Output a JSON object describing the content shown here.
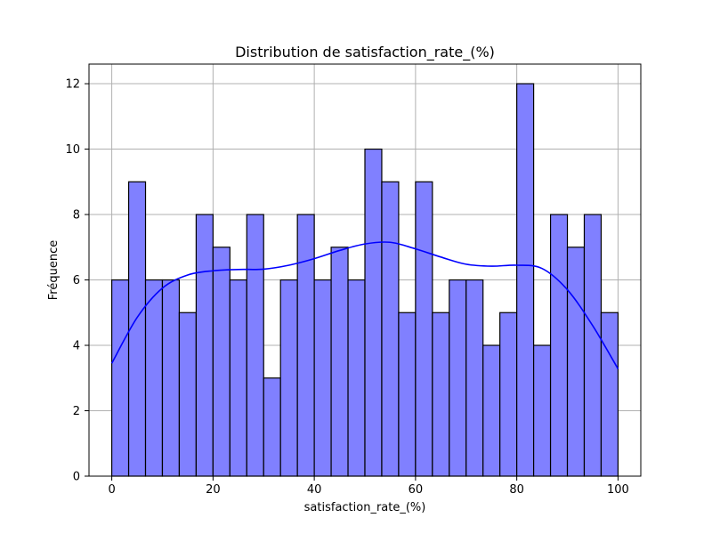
{
  "chart_data": {
    "type": "bar",
    "title": "Distribution de satisfaction_rate_(%)",
    "xlabel": "satisfaction_rate_(%)",
    "ylabel": "Fréquence",
    "xlim": [
      -4.5,
      104.5
    ],
    "ylim": [
      0,
      12.6
    ],
    "xticks": [
      0,
      20,
      40,
      60,
      80,
      100
    ],
    "yticks": [
      0,
      2,
      4,
      6,
      8,
      10,
      12
    ],
    "grid": true,
    "colors": {
      "bar_fill": "#8080ff",
      "bar_edge": "#000000",
      "kde": "#0000ff",
      "grid": "#b0b0b0"
    },
    "bin_edges": [
      0,
      3.333,
      6.667,
      10,
      13.333,
      16.667,
      20,
      23.333,
      26.667,
      30,
      33.333,
      36.667,
      40,
      43.333,
      46.667,
      50,
      53.333,
      56.667,
      60,
      63.333,
      66.667,
      70,
      73.333,
      76.667,
      80,
      83.333,
      86.667,
      90,
      93.333,
      96.667,
      100
    ],
    "counts": [
      6,
      9,
      6,
      6,
      5,
      8,
      7,
      6,
      8,
      3,
      6,
      8,
      6,
      7,
      6,
      10,
      9,
      5,
      9,
      5,
      6,
      6,
      4,
      5,
      12,
      4,
      8,
      7,
      8,
      5
    ],
    "kde": {
      "x": [
        0,
        5,
        10,
        15,
        20,
        25,
        30,
        35,
        40,
        45,
        50,
        55,
        60,
        65,
        70,
        75,
        80,
        85,
        90,
        95,
        100
      ],
      "y": [
        3.45,
        4.85,
        5.75,
        6.15,
        6.28,
        6.32,
        6.33,
        6.45,
        6.65,
        6.9,
        7.1,
        7.15,
        6.95,
        6.7,
        6.48,
        6.42,
        6.45,
        6.35,
        5.7,
        4.6,
        3.28
      ]
    }
  }
}
